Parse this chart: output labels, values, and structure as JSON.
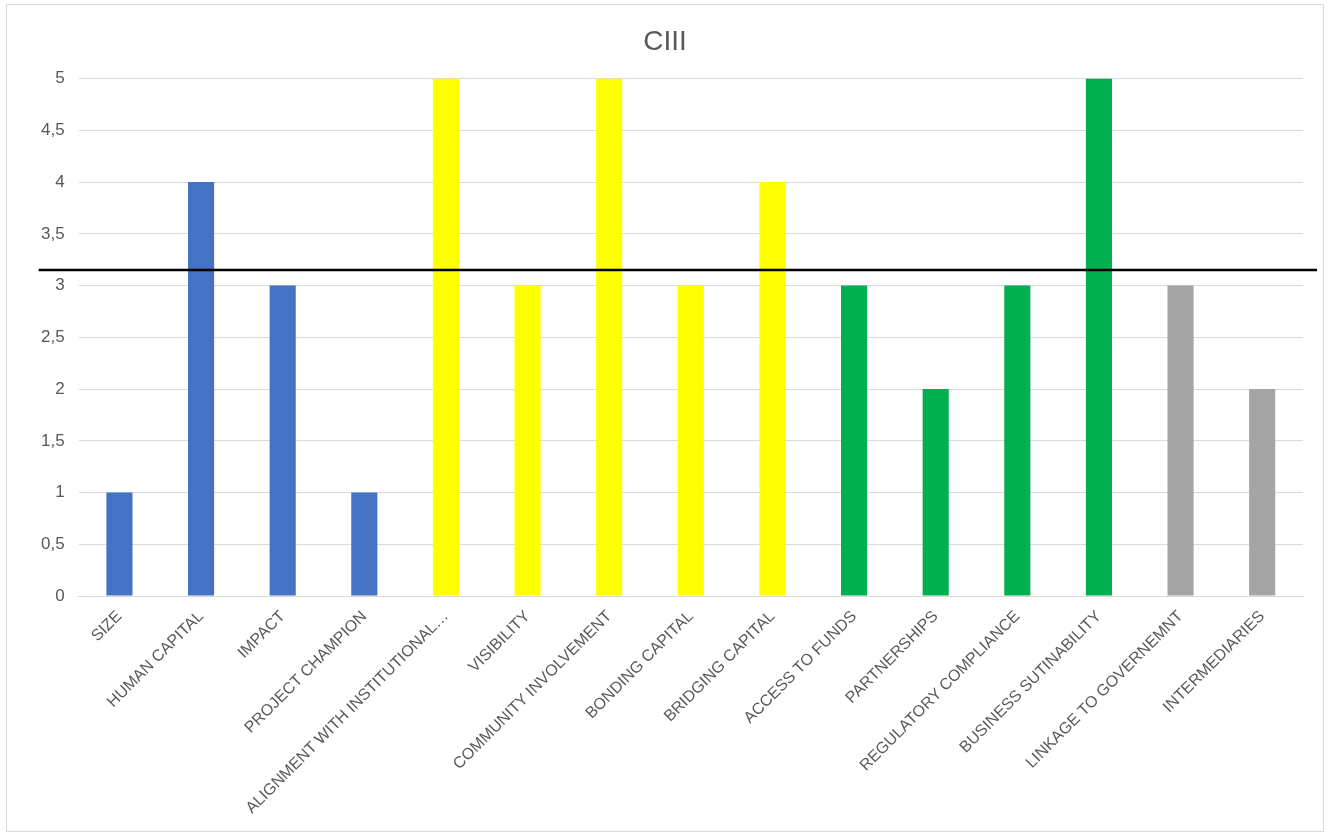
{
  "chart_data": {
    "type": "bar",
    "title": "CIII",
    "categories": [
      "SIZE",
      "HUMAN CAPITAL",
      "IMPACT",
      "PROJECT CHAMPION",
      "ALIGNMENT WITH INSTITUTIONAL…",
      "VISIBILITY",
      "COMMUNITY INVOLVEMENT",
      "BONDING CAPITAL",
      "BRIDGING CAPITAL",
      "ACCESS TO FUNDS",
      "PARTNERSHIPS",
      "REGULATORY COMPLIANCE",
      "BUSINESS SUTINABILITY",
      "LINKAGE TO GOVERNEMNT",
      "INTERMEDIARIES"
    ],
    "values": [
      1,
      4,
      3,
      1,
      5,
      3,
      5,
      3,
      4,
      3,
      2,
      3,
      5,
      3,
      2
    ],
    "colors": [
      "#4472c4",
      "#4472c4",
      "#4472c4",
      "#4472c4",
      "#ffff00",
      "#ffff00",
      "#ffff00",
      "#ffff00",
      "#ffff00",
      "#00b050",
      "#00b050",
      "#00b050",
      "#00b050",
      "#a5a5a5",
      "#a5a5a5"
    ],
    "ylim": [
      0,
      5
    ],
    "yticks": [
      0,
      {
        "value": 0.5,
        "label": "0,5"
      },
      1,
      {
        "value": 1.5,
        "label": "1,5"
      },
      2,
      {
        "value": 2.5,
        "label": "2,5"
      },
      3,
      {
        "value": 3.5,
        "label": "3,5"
      },
      4,
      {
        "value": 4.5,
        "label": "4,5"
      },
      5
    ],
    "grid": "y",
    "ref_lines": [
      {
        "axis": "y",
        "value": 3.15,
        "color": "#000000"
      }
    ]
  }
}
